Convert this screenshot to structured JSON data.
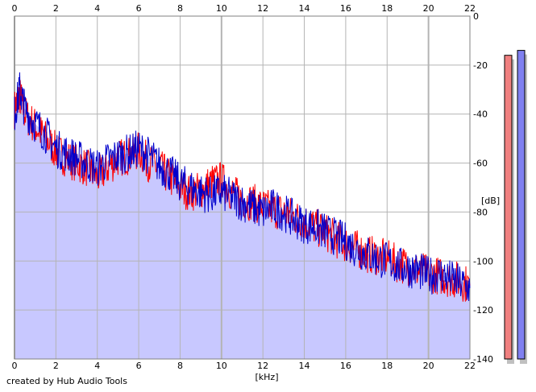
{
  "credit": "created by Hub Audio Tools",
  "chart_data": {
    "type": "line",
    "xlabel": "[kHz]",
    "ylabel": "[dB]",
    "xlim": [
      0,
      22
    ],
    "ylim": [
      -140,
      0
    ],
    "x_ticks": [
      "0",
      "2",
      "4",
      "6",
      "8",
      "10",
      "12",
      "14",
      "16",
      "18",
      "20",
      "22"
    ],
    "y_ticks": [
      "0",
      "-20",
      "-40",
      "-60",
      "-80",
      "-100",
      "-120",
      "-140"
    ],
    "grid": true,
    "colors": {
      "background_fill": "#c8c8ff",
      "grid": "#b4b4b4",
      "series_red": "#ff0000",
      "series_blue": "#0000cc",
      "meter_left": "#f08080",
      "meter_right": "#8080f0"
    },
    "series": [
      {
        "color": "#ff0000",
        "x": [
          0,
          0.25,
          0.5,
          1,
          1.5,
          2,
          2.5,
          3,
          3.5,
          4,
          4.5,
          5,
          5.5,
          6,
          6.5,
          7,
          7.5,
          8,
          8.5,
          9,
          9.5,
          10,
          10.5,
          11,
          11.5,
          12,
          12.5,
          13,
          13.5,
          14,
          14.5,
          15,
          15.5,
          16,
          16.5,
          17,
          17.5,
          18,
          18.5,
          19,
          19.5,
          20,
          20.5,
          21,
          21.5,
          22
        ],
        "y": [
          -38,
          -32,
          -40,
          -45,
          -50,
          -55,
          -58,
          -60,
          -62,
          -66,
          -62,
          -58,
          -57,
          -55,
          -60,
          -62,
          -66,
          -70,
          -72,
          -71,
          -68,
          -67,
          -72,
          -75,
          -76,
          -78,
          -79,
          -80,
          -82,
          -84,
          -86,
          -88,
          -91,
          -93,
          -95,
          -97,
          -98,
          -99,
          -101,
          -102,
          -104,
          -105,
          -106,
          -107,
          -108,
          -110
        ]
      },
      {
        "color": "#0000cc",
        "x": [
          0,
          0.25,
          0.5,
          1,
          1.5,
          2,
          2.5,
          3,
          3.5,
          4,
          4.5,
          5,
          5.5,
          6,
          6.5,
          7,
          7.5,
          8,
          8.5,
          9,
          9.5,
          10,
          10.5,
          11,
          11.5,
          12,
          12.5,
          13,
          13.5,
          14,
          14.5,
          15,
          15.5,
          16,
          16.5,
          17,
          17.5,
          18,
          18.5,
          19,
          19.5,
          20,
          20.5,
          21,
          21.5,
          22
        ],
        "y": [
          -40,
          -30,
          -38,
          -44,
          -48,
          -54,
          -56,
          -58,
          -60,
          -62,
          -59,
          -57,
          -56,
          -54,
          -57,
          -61,
          -64,
          -68,
          -70,
          -72,
          -73,
          -72,
          -74,
          -76,
          -78,
          -80,
          -78,
          -80,
          -83,
          -85,
          -86,
          -88,
          -90,
          -92,
          -95,
          -97,
          -99,
          -100,
          -102,
          -103,
          -104,
          -106,
          -105,
          -107,
          -109,
          -111
        ]
      }
    ],
    "meters": [
      {
        "channel": "left",
        "level_db": -16
      },
      {
        "channel": "right",
        "level_db": -14
      }
    ]
  }
}
